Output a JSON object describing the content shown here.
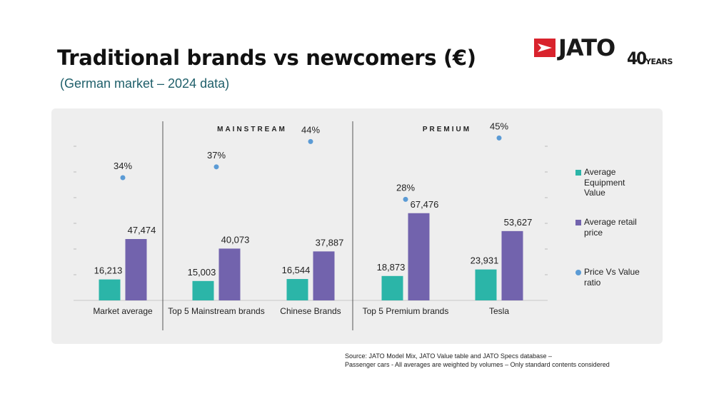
{
  "header": {
    "title": "Traditional brands vs newcomers (€)",
    "subtitle": "(German market – 2024 data)"
  },
  "logo": {
    "brand": "JATO",
    "anniversary_number": "40",
    "anniversary_word": "YEARS",
    "colors": {
      "mark": "#d9232d",
      "text": "#1a1a1a"
    }
  },
  "colors": {
    "equipment": "#2bb5a8",
    "retail": "#7263ad",
    "ratio": "#5b9bd5",
    "panel": "#eeeeee"
  },
  "chart_data": {
    "type": "bar",
    "title": "Traditional brands vs newcomers (€)",
    "subtitle": "(German market – 2024 data)",
    "groups": [
      {
        "label": "",
        "categories": [
          "Market average"
        ]
      },
      {
        "label": "MAINSTREAM",
        "categories": [
          "Top 5 Mainstream brands",
          "Chinese Brands"
        ]
      },
      {
        "label": "PREMIUM",
        "categories": [
          "Top 5 Premium brands",
          "Tesla"
        ]
      }
    ],
    "categories": [
      "Market average",
      "Top 5 Mainstream brands",
      "Chinese Brands",
      "Top 5 Premium brands",
      "Tesla"
    ],
    "series": [
      {
        "name": "Average Equipment Value",
        "type": "bar",
        "axis": "left",
        "values": [
          16213,
          15003,
          16544,
          18873,
          23931
        ],
        "labels": [
          "16,213",
          "15,003",
          "16,544",
          "18,873",
          "23,931"
        ]
      },
      {
        "name": "Average retail price",
        "type": "bar",
        "axis": "left",
        "values": [
          47474,
          40073,
          37887,
          67476,
          53627
        ],
        "labels": [
          "47,474",
          "40,073",
          "37,887",
          "67,476",
          "53,627"
        ]
      },
      {
        "name": "Price Vs Value ratio",
        "type": "scatter",
        "axis": "right",
        "values": [
          34,
          37,
          44,
          28,
          45
        ],
        "labels": [
          "34%",
          "37%",
          "44%",
          "28%",
          "45%"
        ]
      }
    ],
    "ylim": [
      0,
      120000
    ],
    "y2lim": [
      0,
      50
    ],
    "grid": false,
    "legend": "right"
  },
  "source": {
    "line1": "Source: JATO Model Mix, JATO Value table and JATO Specs database –",
    "line2": "Passenger cars - All averages are weighted by volumes – Only standard contents considered"
  }
}
